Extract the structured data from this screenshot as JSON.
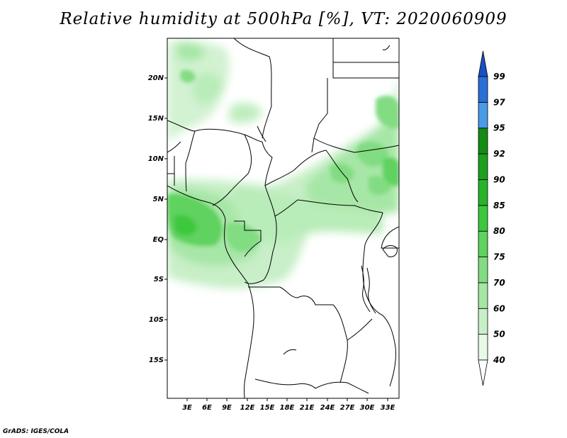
{
  "title": "Relative humidity at 500hPa [%], VT: 2020060909",
  "credit": "GrADS: IGES/COLA",
  "map": {
    "lat_ticks": [
      "20N",
      "15N",
      "10N",
      "5N",
      "EQ",
      "5S",
      "10S",
      "15S"
    ],
    "lon_ticks": [
      "3E",
      "6E",
      "9E",
      "12E",
      "15E",
      "18E",
      "21E",
      "24E",
      "27E",
      "30E",
      "33E"
    ]
  },
  "colorbar": {
    "levels": [
      "40",
      "50",
      "60",
      "70",
      "75",
      "80",
      "85",
      "90",
      "92",
      "95",
      "97",
      "99"
    ],
    "colors": [
      "#ffffff",
      "#e6fae6",
      "#c8f0c8",
      "#a5e6a5",
      "#82dc82",
      "#5fd25f",
      "#3cc83c",
      "#28b428",
      "#1ea01e",
      "#148c14",
      "#4a9be6",
      "#2a6fd6",
      "#1a4fc0"
    ]
  }
}
